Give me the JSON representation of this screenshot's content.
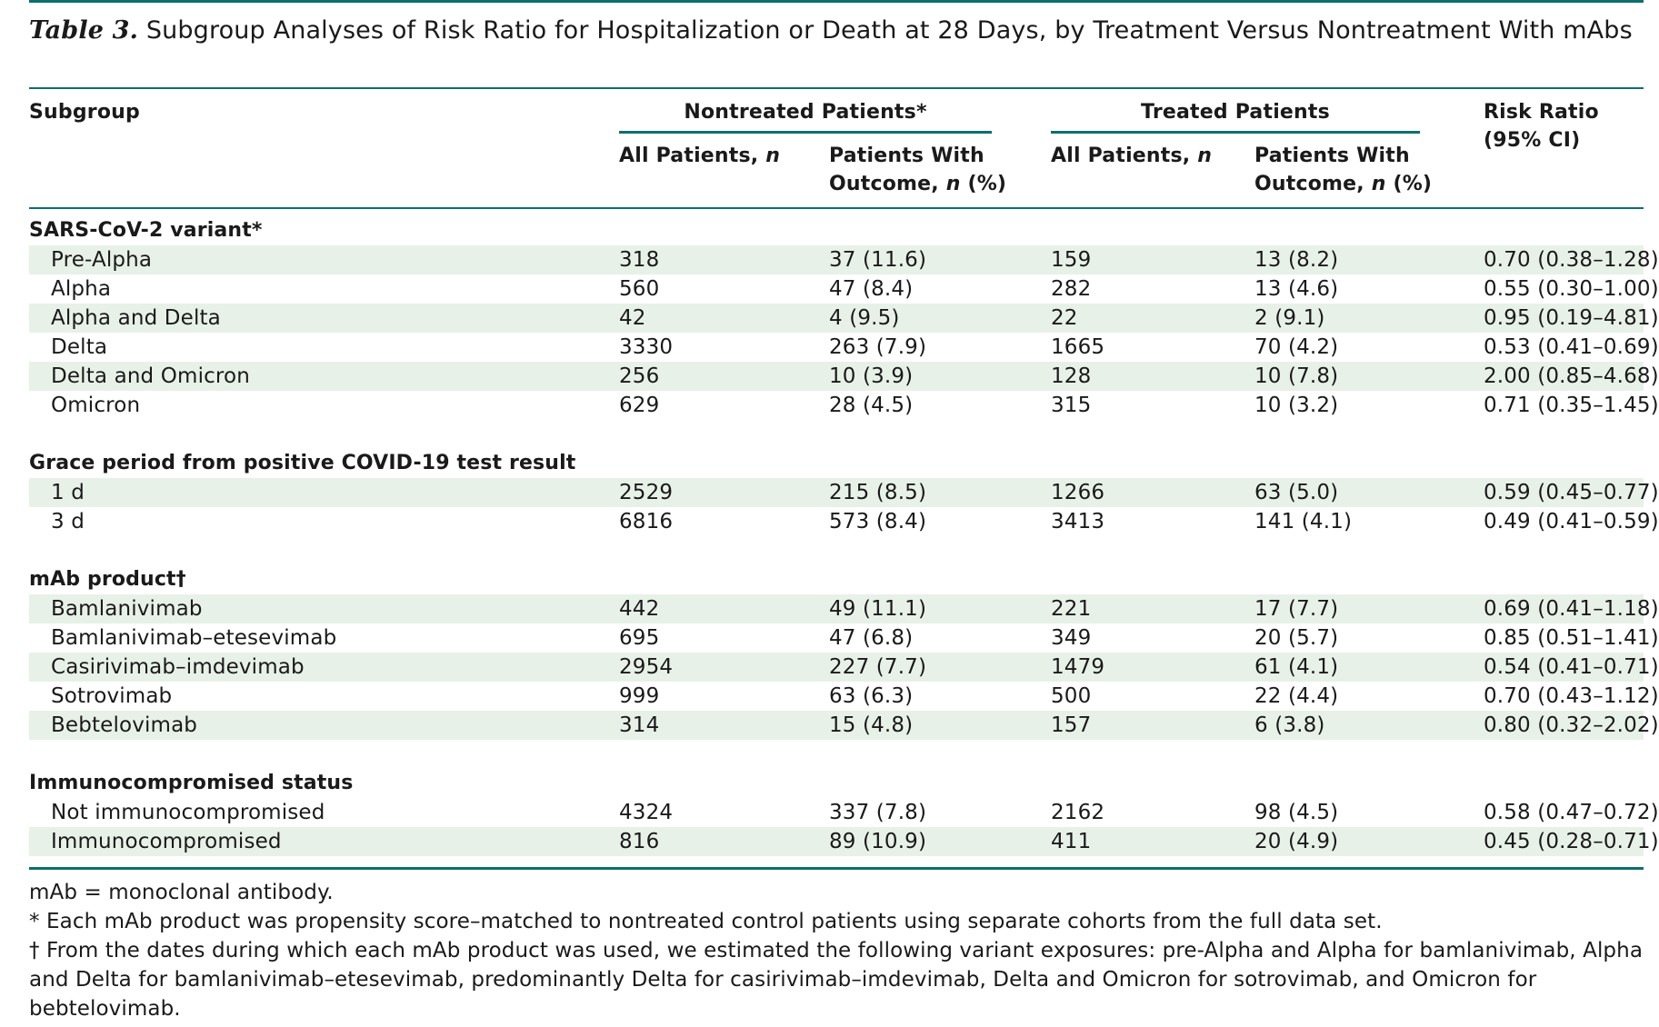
{
  "title": {
    "label": "Table 3.",
    "text": "Subgroup Analyses of Risk Ratio for Hospitalization or Death at 28 Days, by Treatment Versus Nontreatment With mAbs"
  },
  "headers": {
    "subgroup": "Subgroup",
    "nontreated": "Nontreated Patients*",
    "treated": "Treated Patients",
    "risk_ratio_line1": "Risk Ratio",
    "risk_ratio_line2": "(95% CI)",
    "all_patients": "All Patients,",
    "n": "n",
    "with_outcome_line1": "Patients With",
    "with_outcome_line2a": "Outcome,",
    "with_outcome_line2b": "(%)"
  },
  "groups": [
    {
      "name": "SARS-CoV-2 variant*",
      "rows": [
        {
          "label": "Pre-Alpha",
          "nt_all": "318",
          "nt_out": "37 (11.6)",
          "t_all": "159",
          "t_out": "13 (8.2)",
          "rr": "0.70 (0.38–1.28)"
        },
        {
          "label": "Alpha",
          "nt_all": "560",
          "nt_out": "47 (8.4)",
          "t_all": "282",
          "t_out": "13 (4.6)",
          "rr": "0.55 (0.30–1.00)"
        },
        {
          "label": "Alpha and Delta",
          "nt_all": "42",
          "nt_out": "4 (9.5)",
          "t_all": "22",
          "t_out": "2 (9.1)",
          "rr": "0.95 (0.19–4.81)"
        },
        {
          "label": "Delta",
          "nt_all": "3330",
          "nt_out": "263 (7.9)",
          "t_all": "1665",
          "t_out": "70 (4.2)",
          "rr": "0.53 (0.41–0.69)"
        },
        {
          "label": "Delta and Omicron",
          "nt_all": "256",
          "nt_out": "10 (3.9)",
          "t_all": "128",
          "t_out": "10 (7.8)",
          "rr": "2.00 (0.85–4.68)"
        },
        {
          "label": "Omicron",
          "nt_all": "629",
          "nt_out": "28 (4.5)",
          "t_all": "315",
          "t_out": "10 (3.2)",
          "rr": "0.71 (0.35–1.45)"
        }
      ]
    },
    {
      "name": "Grace period from positive COVID-19 test result",
      "rows": [
        {
          "label": "1 d",
          "nt_all": "2529",
          "nt_out": "215 (8.5)",
          "t_all": "1266",
          "t_out": "63 (5.0)",
          "rr": "0.59 (0.45–0.77)"
        },
        {
          "label": "3 d",
          "nt_all": "6816",
          "nt_out": "573 (8.4)",
          "t_all": "3413",
          "t_out": "141 (4.1)",
          "rr": "0.49 (0.41–0.59)"
        }
      ]
    },
    {
      "name": "mAb product†",
      "rows": [
        {
          "label": "Bamlanivimab",
          "nt_all": "442",
          "nt_out": "49 (11.1)",
          "t_all": "221",
          "t_out": "17 (7.7)",
          "rr": "0.69 (0.41–1.18)"
        },
        {
          "label": "Bamlanivimab–etesevimab",
          "nt_all": "695",
          "nt_out": "47 (6.8)",
          "t_all": "349",
          "t_out": "20 (5.7)",
          "rr": "0.85 (0.51–1.41)"
        },
        {
          "label": "Casirivimab–imdevimab",
          "nt_all": "2954",
          "nt_out": "227 (7.7)",
          "t_all": "1479",
          "t_out": "61 (4.1)",
          "rr": "0.54 (0.41–0.71)"
        },
        {
          "label": "Sotrovimab",
          "nt_all": "999",
          "nt_out": "63 (6.3)",
          "t_all": "500",
          "t_out": "22 (4.4)",
          "rr": "0.70 (0.43–1.12)"
        },
        {
          "label": "Bebtelovimab",
          "nt_all": "314",
          "nt_out": "15 (4.8)",
          "t_all": "157",
          "t_out": "6 (3.8)",
          "rr": "0.80 (0.32–2.02)"
        }
      ]
    },
    {
      "name": "Immunocompromised status",
      "rows": [
        {
          "label": "Not immunocompromised",
          "nt_all": "4324",
          "nt_out": "337 (7.8)",
          "t_all": "2162",
          "t_out": "98 (4.5)",
          "rr": "0.58 (0.47–0.72)"
        },
        {
          "label": "Immunocompromised",
          "nt_all": "816",
          "nt_out": "89 (10.9)",
          "t_all": "411",
          "t_out": "20 (4.9)",
          "rr": "0.45 (0.28–0.71)"
        }
      ]
    }
  ],
  "footnotes": [
    "mAb = monoclonal antibody.",
    "* Each mAb product was propensity score–matched to nontreated control patients using separate cohorts from the full data set.",
    "† From the dates during which each mAb product was used, we estimated the following variant exposures: pre-Alpha and Alpha for bamlanivimab, Alpha and Delta for bamlanivimab–etesevimab, predominantly Delta for casirivimab–imdevimab, Delta and Omicron for sotrovimab, and Omicron for bebtelovimab."
  ],
  "colors": {
    "rule": "#0e6e6e",
    "shade": "#e8f1e8"
  }
}
